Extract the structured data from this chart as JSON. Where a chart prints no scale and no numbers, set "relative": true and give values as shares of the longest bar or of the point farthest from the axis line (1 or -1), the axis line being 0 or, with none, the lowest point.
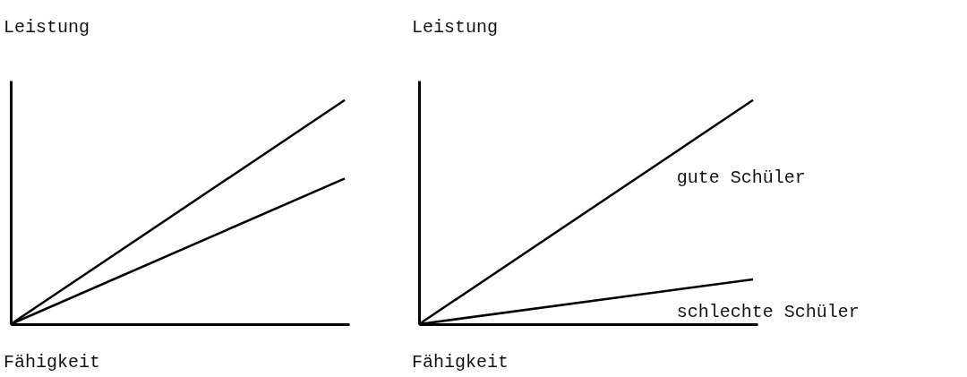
{
  "chart_data": [
    {
      "type": "line",
      "ylabel": "Leistung",
      "xlabel": "Fähigkeit",
      "relative": true,
      "categories": [
        null,
        null
      ],
      "series": [
        {
          "color": "#000000",
          "values": [
            0,
            1
          ]
        },
        {
          "color": "#000000",
          "values": [
            0,
            0.65
          ]
        }
      ]
    },
    {
      "type": "line",
      "ylabel": "Leistung",
      "xlabel": "Fähigkeit",
      "relative": true,
      "categories": [
        null,
        null
      ],
      "series": [
        {
          "name": "gute Schüler",
          "color": "#000000",
          "values": [
            0,
            1
          ]
        },
        {
          "name": "schlechte Schüler",
          "color": "#000000",
          "values": [
            0,
            0.2
          ]
        }
      ]
    }
  ]
}
